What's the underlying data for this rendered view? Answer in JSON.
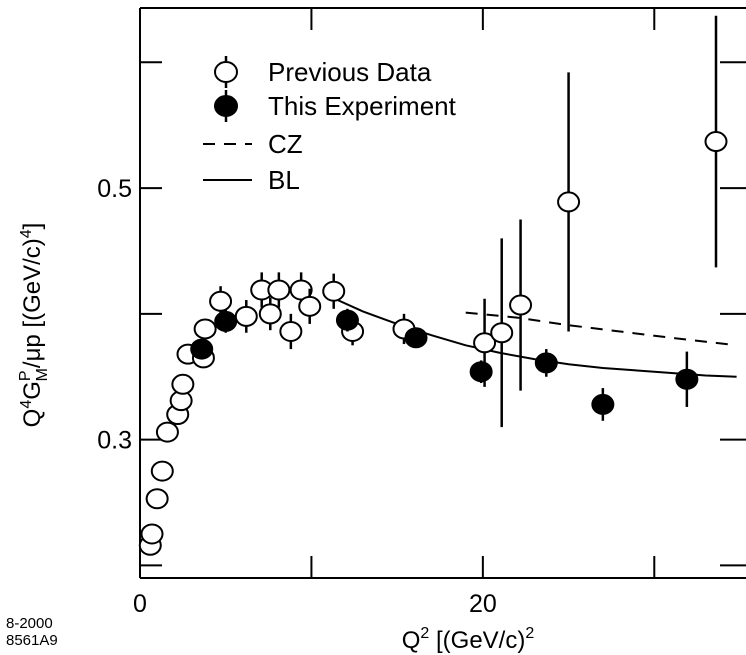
{
  "figure_ids": [
    "8-2000",
    "8561A9"
  ],
  "chart_data": {
    "type": "scatter",
    "title": "",
    "xlabel": {
      "pre": "Q",
      "sup": "2",
      "post": "  [(GeV/c)",
      "sup2": "2",
      "end": ""
    },
    "ylabel": {
      "pre": "Q",
      "sup1": "4",
      "g": "G",
      "sup_p": "P",
      "sub_m": "M",
      "post": "/μp  [(GeV/c)",
      "sup2": "4",
      "end": "]"
    },
    "xlim": [
      0,
      35
    ],
    "ylim": [
      0.19,
      0.64
    ],
    "x_ticks": [
      0,
      20
    ],
    "x_tick_labels": [
      "0",
      "20"
    ],
    "x_minor_ticks": [
      10,
      30
    ],
    "y_ticks": [
      0.3,
      0.5
    ],
    "y_tick_labels": [
      "0.3",
      "0.5"
    ],
    "y_minor_ticks": [
      0.2,
      0.4,
      0.6
    ],
    "legend": {
      "placement": "top-left",
      "entries": [
        {
          "label": "Previous Data",
          "marker": "open-circle"
        },
        {
          "label": "This Experiment",
          "marker": "filled-circle"
        },
        {
          "label": "CZ",
          "line": "dashed"
        },
        {
          "label": "BL",
          "line": "solid"
        }
      ]
    },
    "series": [
      {
        "name": "Previous Data",
        "marker": "open-circle",
        "points": [
          {
            "x": 0.6,
            "y": 0.216,
            "err": 0
          },
          {
            "x": 0.7,
            "y": 0.225,
            "err": 0
          },
          {
            "x": 1.0,
            "y": 0.253,
            "err": 0
          },
          {
            "x": 1.3,
            "y": 0.275,
            "err": 0
          },
          {
            "x": 1.6,
            "y": 0.306,
            "err": 0
          },
          {
            "x": 2.2,
            "y": 0.32,
            "err": 0
          },
          {
            "x": 2.4,
            "y": 0.331,
            "err": 0
          },
          {
            "x": 2.5,
            "y": 0.344,
            "err": 0
          },
          {
            "x": 2.8,
            "y": 0.368,
            "err": 0.005
          },
          {
            "x": 3.7,
            "y": 0.365,
            "err": 0.005
          },
          {
            "x": 3.8,
            "y": 0.388,
            "err": 0.005
          },
          {
            "x": 4.7,
            "y": 0.41,
            "err": 0.012
          },
          {
            "x": 6.2,
            "y": 0.398,
            "err": 0.013
          },
          {
            "x": 7.1,
            "y": 0.419,
            "err": 0.014
          },
          {
            "x": 7.6,
            "y": 0.4,
            "err": 0.013
          },
          {
            "x": 8.1,
            "y": 0.419,
            "err": 0.014
          },
          {
            "x": 8.8,
            "y": 0.386,
            "err": 0.014
          },
          {
            "x": 9.4,
            "y": 0.419,
            "err": 0.014
          },
          {
            "x": 9.9,
            "y": 0.406,
            "err": 0.014
          },
          {
            "x": 11.3,
            "y": 0.418,
            "err": 0.014
          },
          {
            "x": 12.4,
            "y": 0.386,
            "err": 0.011
          },
          {
            "x": 15.4,
            "y": 0.388,
            "err": 0.012
          },
          {
            "x": 20.1,
            "y": 0.377,
            "err": 0.035
          },
          {
            "x": 21.1,
            "y": 0.385,
            "err": 0.075
          },
          {
            "x": 22.2,
            "y": 0.407,
            "err": 0.068
          },
          {
            "x": 25.0,
            "y": 0.489,
            "err": 0.103
          },
          {
            "x": 33.6,
            "y": 0.537,
            "err": 0.1
          }
        ]
      },
      {
        "name": "This Experiment",
        "marker": "filled-circle",
        "points": [
          {
            "x": 3.6,
            "y": 0.372,
            "err": 0.008
          },
          {
            "x": 5.0,
            "y": 0.394,
            "err": 0.009
          },
          {
            "x": 12.1,
            "y": 0.395,
            "err": 0.009
          },
          {
            "x": 16.1,
            "y": 0.381,
            "err": 0.008
          },
          {
            "x": 19.9,
            "y": 0.354,
            "err": 0.009
          },
          {
            "x": 23.7,
            "y": 0.361,
            "err": 0.011
          },
          {
            "x": 27.0,
            "y": 0.328,
            "err": 0.013
          },
          {
            "x": 31.9,
            "y": 0.348,
            "err": 0.022
          }
        ]
      }
    ],
    "curves": [
      {
        "name": "CZ",
        "style": "dashed",
        "points": [
          [
            19.0,
            0.401
          ],
          [
            22.0,
            0.397
          ],
          [
            25.0,
            0.391
          ],
          [
            28.0,
            0.386
          ],
          [
            31.0,
            0.381
          ],
          [
            34.8,
            0.375
          ]
        ]
      },
      {
        "name": "BL",
        "style": "solid",
        "points": [
          [
            11.2,
            0.413
          ],
          [
            13.0,
            0.402
          ],
          [
            15.0,
            0.392
          ],
          [
            17.0,
            0.383
          ],
          [
            19.0,
            0.375
          ],
          [
            21.0,
            0.369
          ],
          [
            23.0,
            0.364
          ],
          [
            25.0,
            0.36
          ],
          [
            27.0,
            0.357
          ],
          [
            29.0,
            0.355
          ],
          [
            31.0,
            0.353
          ],
          [
            33.0,
            0.351
          ],
          [
            34.8,
            0.35
          ]
        ]
      }
    ]
  }
}
